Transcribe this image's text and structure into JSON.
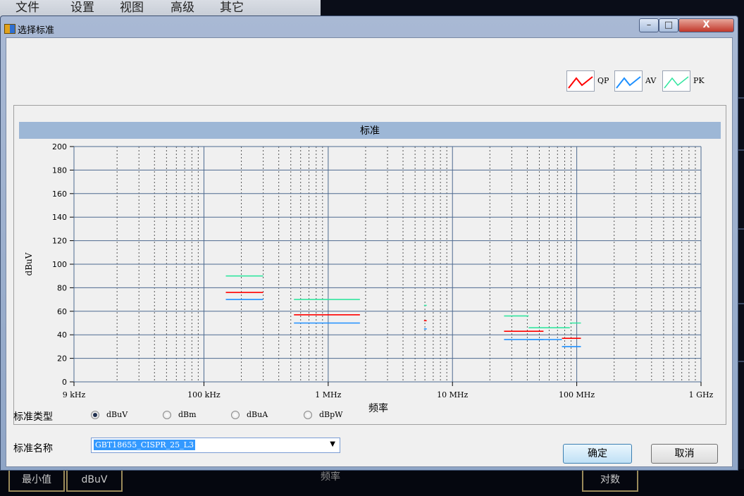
{
  "background_app": {
    "menu": [
      "文件",
      "设置",
      "视图",
      "高级",
      "其它"
    ],
    "bottom_bar": {
      "min_label": "最小值",
      "unit_label": "dBuV",
      "freq_label": "频率",
      "scale_label": "对数"
    }
  },
  "dialog": {
    "title": "选择标准",
    "buttons": {
      "minimize": "–",
      "maximize": "□",
      "close": "X"
    }
  },
  "legend": [
    {
      "name": "QP",
      "color": "#ff0000"
    },
    {
      "name": "AV",
      "color": "#1e90ff"
    },
    {
      "name": "PK",
      "color": "#33e6a0"
    }
  ],
  "chart_data": {
    "type": "line",
    "title": "标准",
    "xlabel": "频率",
    "ylabel": "dBuV",
    "x_scale": "log",
    "xlim": [
      9000,
      1000000000
    ],
    "x_ticks": [
      {
        "value": 9000,
        "label": "9 kHz"
      },
      {
        "value": 100000,
        "label": "100 kHz"
      },
      {
        "value": 1000000,
        "label": "1 MHz"
      },
      {
        "value": 10000000,
        "label": "10 MHz"
      },
      {
        "value": 100000000,
        "label": "100 MHz"
      },
      {
        "value": 1000000000,
        "label": "1 GHz"
      }
    ],
    "ylim": [
      0,
      200
    ],
    "y_ticks": [
      0,
      20,
      40,
      60,
      80,
      100,
      120,
      140,
      160,
      180,
      200
    ],
    "grid": true,
    "series": [
      {
        "name": "QP",
        "color": "#ff0000",
        "segments": [
          {
            "x": [
              150000,
              300000
            ],
            "y": 76
          },
          {
            "x": [
              530000,
              1800000
            ],
            "y": 57
          },
          {
            "x": [
              5900000,
              6200000
            ],
            "y": 52
          },
          {
            "x": [
              26000000,
              30000000
            ],
            "y": 43
          },
          {
            "x": [
              30000000,
              54000000
            ],
            "y": 43
          },
          {
            "x": [
              76000000,
              108000000
            ],
            "y": 37
          }
        ]
      },
      {
        "name": "AV",
        "color": "#1e90ff",
        "segments": [
          {
            "x": [
              150000,
              300000
            ],
            "y": 70
          },
          {
            "x": [
              530000,
              1800000
            ],
            "y": 50
          },
          {
            "x": [
              5900000,
              6200000
            ],
            "y": 45
          },
          {
            "x": [
              26000000,
              30000000
            ],
            "y": 36
          },
          {
            "x": [
              30000000,
              54000000
            ],
            "y": 36
          },
          {
            "x": [
              41000000,
              76000000
            ],
            "y": 36
          },
          {
            "x": [
              76000000,
              108000000
            ],
            "y": 30
          }
        ]
      },
      {
        "name": "PK",
        "color": "#33e6a0",
        "segments": [
          {
            "x": [
              150000,
              300000
            ],
            "y": 90
          },
          {
            "x": [
              530000,
              1800000
            ],
            "y": 70
          },
          {
            "x": [
              5900000,
              6200000
            ],
            "y": 65
          },
          {
            "x": [
              26000000,
              30000000
            ],
            "y": 56
          },
          {
            "x": [
              30000000,
              41000000
            ],
            "y": 56
          },
          {
            "x": [
              41000000,
              88000000
            ],
            "y": 46
          },
          {
            "x": [
              88000000,
              108000000
            ],
            "y": 50
          }
        ]
      }
    ]
  },
  "controls": {
    "type_label": "标准类型",
    "type_options": [
      {
        "label": "dBuV",
        "selected": true
      },
      {
        "label": "dBm",
        "selected": false
      },
      {
        "label": "dBuA",
        "selected": false
      },
      {
        "label": "dBpW",
        "selected": false
      }
    ],
    "name_label": "标准名称",
    "name_value": "GBT18655_CISPR_25_L3",
    "ok_label": "确定",
    "cancel_label": "取消"
  }
}
